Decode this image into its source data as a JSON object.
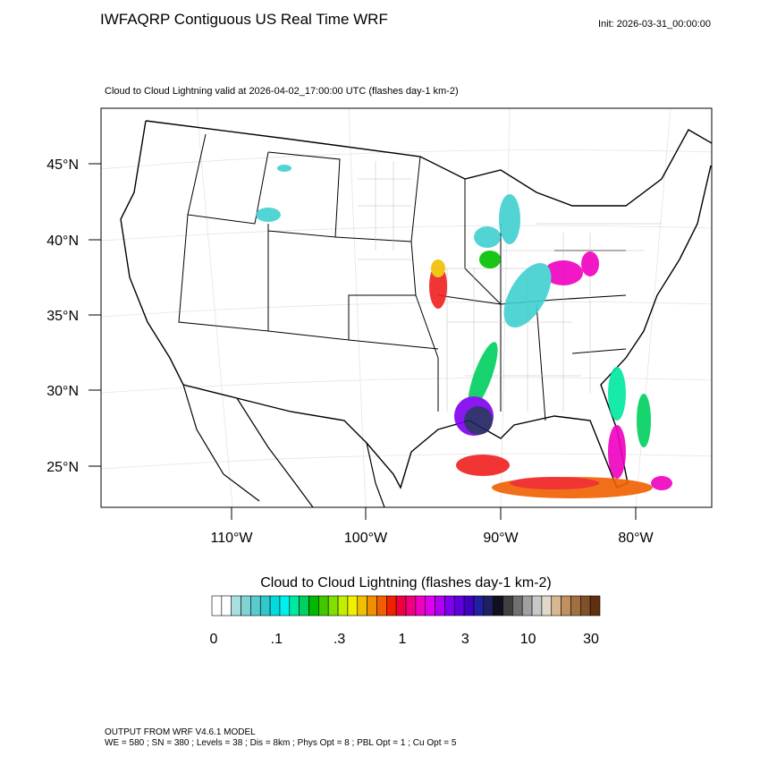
{
  "header": {
    "title": "IWFAQRP Contiguous US Real Time WRF",
    "init": "Init: 2026-03-31_00:00:00"
  },
  "map": {
    "subtitle": "Cloud to Cloud Lightning valid at 2026-04-02_17:00:00 UTC   (flashes day-1 km-2)",
    "lat_labels": [
      "45°N",
      "40°N",
      "35°N",
      "30°N",
      "25°N"
    ],
    "lon_labels": [
      "110°W",
      "100°W",
      "90°W",
      "80°W"
    ]
  },
  "colorbar": {
    "title": "Cloud to Cloud Lightning  (flashes day-1 km-2)",
    "labels": [
      "0",
      ".1",
      ".3",
      "1",
      "3",
      "10",
      "30"
    ],
    "colors": [
      "#ffffff",
      "#ffffff",
      "#a8e0e0",
      "#80d4d4",
      "#58cccc",
      "#30c8c8",
      "#00dcdc",
      "#00f0f0",
      "#00e8a0",
      "#00d060",
      "#00b800",
      "#40c800",
      "#80e000",
      "#c0f000",
      "#f0f000",
      "#f0c000",
      "#f09000",
      "#f06000",
      "#f02000",
      "#f00040",
      "#f00080",
      "#f000c0",
      "#e000f0",
      "#b000f0",
      "#8000f0",
      "#6000e0",
      "#4000c0",
      "#2020a0",
      "#202060",
      "#101020",
      "#404040",
      "#707070",
      "#a0a0a0",
      "#c8c8c8",
      "#e0d8c8",
      "#d8b890",
      "#c09060",
      "#a07040",
      "#805028",
      "#603010"
    ]
  },
  "footer": {
    "line1": "OUTPUT FROM WRF V4.6.1 MODEL",
    "line2": "WE = 580 ; SN = 380 ; Levels = 38 ; Dis = 8km ; Phys Opt = 8 ; PBL Opt = 1 ; Cu Opt = 5"
  }
}
